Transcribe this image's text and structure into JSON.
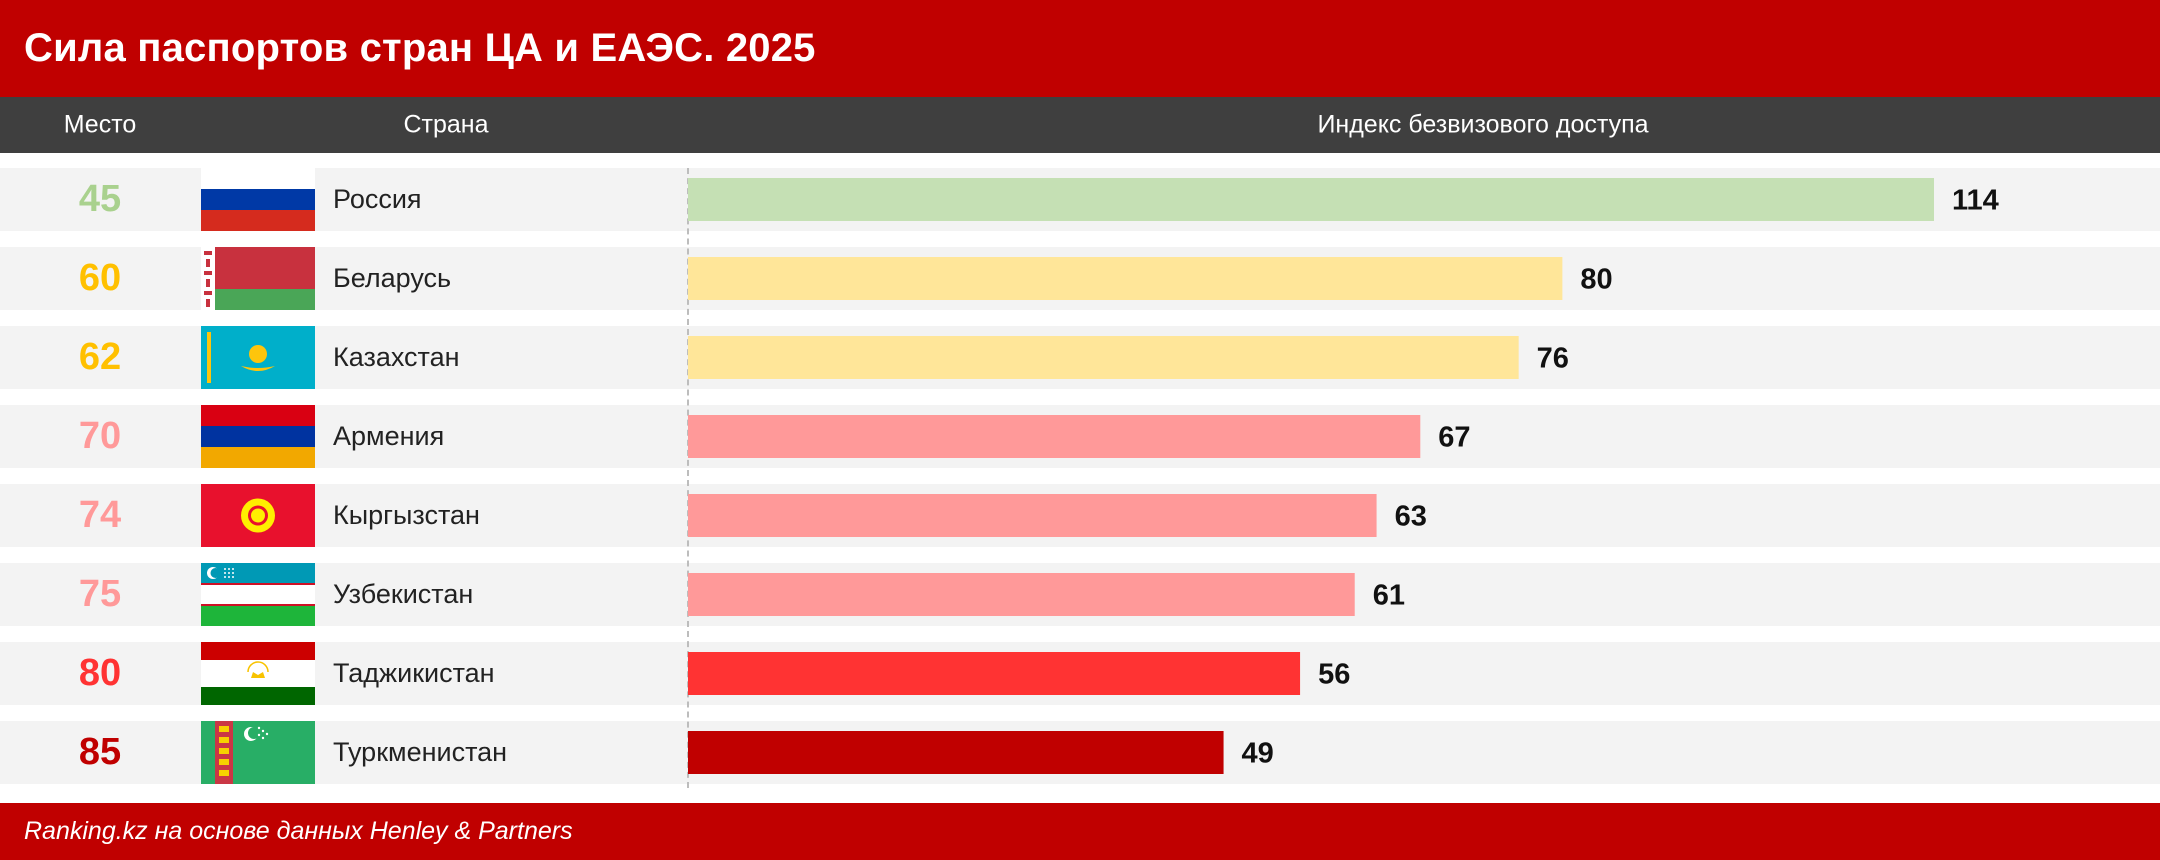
{
  "title": "Сила паспортов стран ЦА и ЕАЭС. 2025",
  "columns": {
    "rank": "Место",
    "country": "Страна",
    "index": "Индекс безвизового доступа"
  },
  "source": "Ranking.kz на основе данных Henley & Partners",
  "colors": {
    "brand_red": "#c00000",
    "header_gray": "#3f3f3f",
    "green": "#c5e0b4",
    "yellow": "#ffe699",
    "pink": "#ff9999",
    "red": "#ff3333",
    "dark_red": "#c00000"
  },
  "chart_data": {
    "type": "bar",
    "orientation": "horizontal",
    "title": "Сила паспортов стран ЦА и ЕАЭС. 2025",
    "xlabel": "Индекс безвизового доступа",
    "categories": [
      "Россия",
      "Беларусь",
      "Казахстан",
      "Армения",
      "Кыргызстан",
      "Узбекистан",
      "Таджикистан",
      "Туркменистан"
    ],
    "values": [
      114,
      80,
      76,
      67,
      63,
      61,
      56,
      49
    ],
    "ranks": [
      "45",
      "60",
      "62",
      "70",
      "74",
      "75",
      "80",
      "85"
    ],
    "bar_colors": [
      "#c5e0b4",
      "#ffe699",
      "#ffe699",
      "#ff9999",
      "#ff9999",
      "#ff9999",
      "#ff3333",
      "#c00000"
    ],
    "rank_colors": [
      "#a9d18e",
      "#ffc000",
      "#ffc000",
      "#ff9999",
      "#ff9999",
      "#ff9999",
      "#ff3333",
      "#c00000"
    ],
    "xlim": [
      0,
      114
    ],
    "grid": false,
    "data_labels": true
  }
}
